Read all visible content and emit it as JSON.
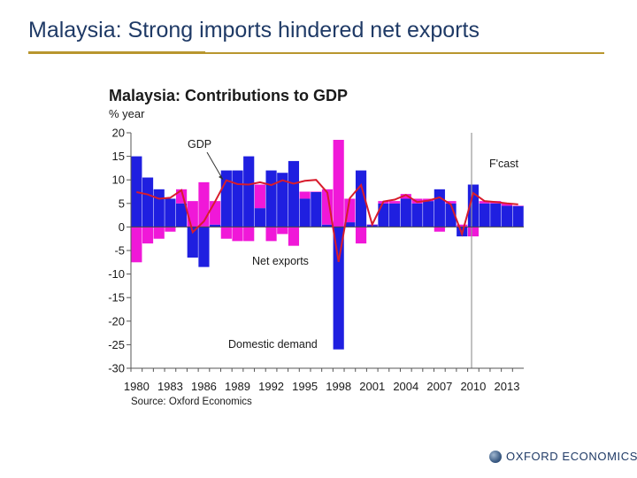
{
  "slide": {
    "title": "Malaysia: Strong imports hindered net exports",
    "logo_text": "OXFORD ECONOMICS",
    "accent_color": "#b8962e",
    "title_color": "#1f3a66"
  },
  "chart_data": {
    "type": "bar",
    "title": "Malaysia: Contributions to GDP",
    "ylabel": "% year",
    "source": "Source: Oxford Economics",
    "ylim": [
      -30,
      20
    ],
    "yticks": [
      20,
      15,
      10,
      5,
      0,
      -5,
      -10,
      -15,
      -20,
      -25,
      -30
    ],
    "x_start": 1980,
    "x_end": 2014,
    "xtick_labels": [
      "1980",
      "1983",
      "1986",
      "1989",
      "1992",
      "1995",
      "1998",
      "2001",
      "2004",
      "2007",
      "2010",
      "2013"
    ],
    "forecast_start": 2010,
    "annotations": {
      "gdp": "GDP",
      "net_exports": "Net exports",
      "domestic_demand": "Domestic demand",
      "forecast": "F'cast"
    },
    "colors": {
      "domestic_demand": "#1f1fe0",
      "net_exports": "#f018d8",
      "gdp": "#d81c2c",
      "forecast_line": "#999999"
    },
    "categories": [
      1980,
      1981,
      1982,
      1983,
      1984,
      1985,
      1986,
      1987,
      1988,
      1989,
      1990,
      1991,
      1992,
      1993,
      1994,
      1995,
      1996,
      1997,
      1998,
      1999,
      2000,
      2001,
      2002,
      2003,
      2004,
      2005,
      2006,
      2007,
      2008,
      2009,
      2010,
      2011,
      2012,
      2013,
      2014
    ],
    "series": [
      {
        "name": "Domestic demand",
        "values": [
          15,
          10.5,
          8,
          6,
          5,
          -6.5,
          -8.5,
          0.5,
          12,
          12,
          15,
          4,
          12,
          11.5,
          14,
          6,
          7.5,
          0.5,
          -26,
          1,
          12,
          0.5,
          5,
          5,
          6,
          5,
          5.5,
          8,
          5,
          -2,
          9,
          5,
          5,
          4.5,
          4.5
        ]
      },
      {
        "name": "Net exports",
        "values": [
          -7.5,
          -3.5,
          -2.5,
          -1,
          3,
          5.5,
          9.5,
          5,
          -2.5,
          -3,
          -3,
          5,
          -3,
          -1.5,
          -4,
          1.5,
          0,
          7.5,
          18.5,
          5,
          -3.5,
          0,
          0.5,
          0.5,
          1,
          1,
          0.5,
          -1,
          0.5,
          0.5,
          -2,
          0.5,
          0.5,
          0.5,
          0
        ]
      },
      {
        "name": "GDP",
        "values": [
          7.4,
          6.9,
          6,
          6.2,
          7.8,
          -1.1,
          1.2,
          5.4,
          9.9,
          9.1,
          9,
          9.5,
          8.9,
          9.9,
          9.2,
          9.8,
          10,
          7.3,
          -7.4,
          6.1,
          8.9,
          0.5,
          5.4,
          5.8,
          6.8,
          5.3,
          5.6,
          6.3,
          4.8,
          -1.5,
          7.2,
          5.5,
          5.3,
          5,
          4.8
        ]
      }
    ]
  }
}
